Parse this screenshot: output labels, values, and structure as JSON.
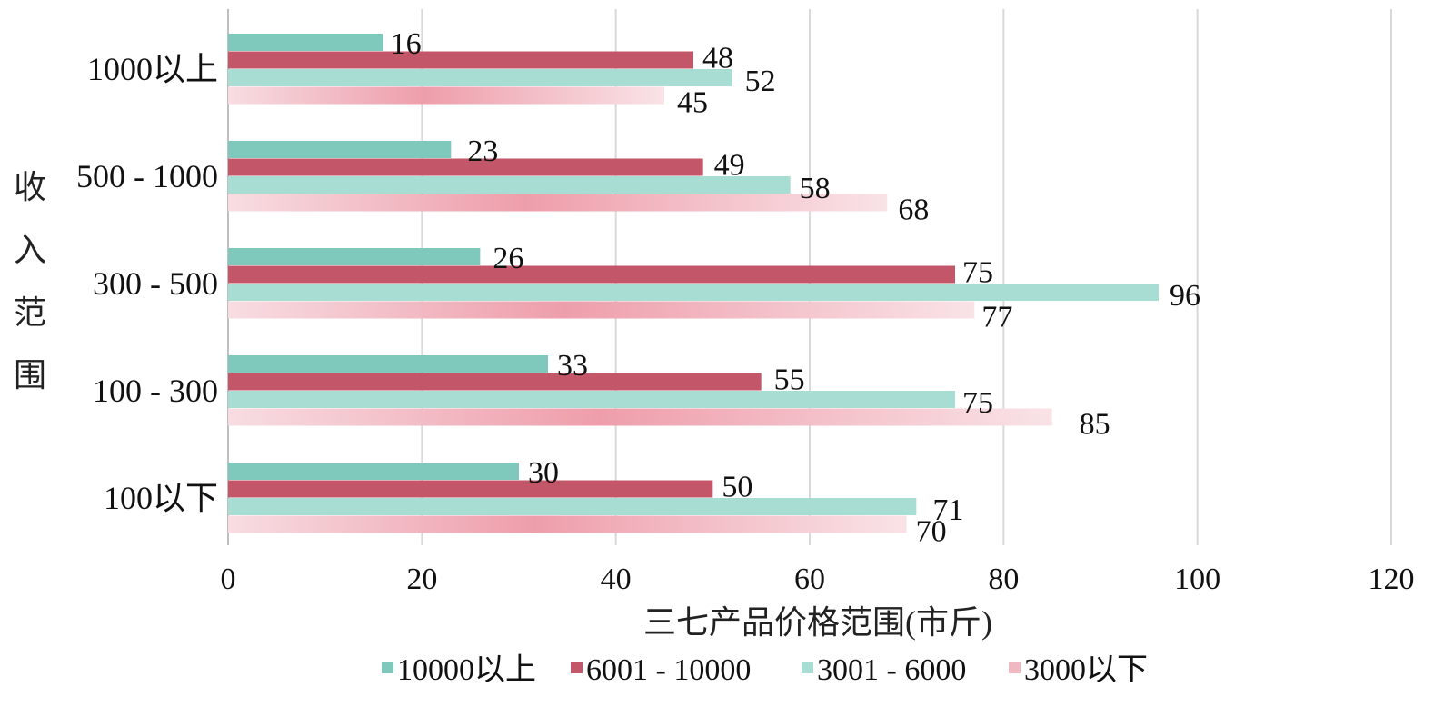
{
  "chart_data": {
    "type": "bar",
    "orientation": "horizontal",
    "categories": [
      "1000以上",
      "500 - 1000",
      "300 - 500",
      "100 - 300",
      "100以下"
    ],
    "series": [
      {
        "name": "10000以上",
        "values": [
          16,
          23,
          26,
          33,
          30
        ],
        "color": "#7ec8bc"
      },
      {
        "name": "6001 - 10000",
        "values": [
          48,
          49,
          75,
          55,
          50
        ],
        "color": "#c4566a"
      },
      {
        "name": "3001 - 6000",
        "values": [
          52,
          58,
          96,
          75,
          71
        ],
        "color": "#a8ddd4"
      },
      {
        "name": "3000以下",
        "values": [
          45,
          68,
          77,
          85,
          70
        ],
        "color": "#f0b3be"
      }
    ],
    "xlabel": "三七产品价格范围(市斤)",
    "ylabel": "收入范围",
    "xlim": [
      0,
      120
    ],
    "xticks": [
      0,
      20,
      40,
      60,
      80,
      100,
      120
    ],
    "grid": "vertical",
    "legend": "bottom"
  }
}
